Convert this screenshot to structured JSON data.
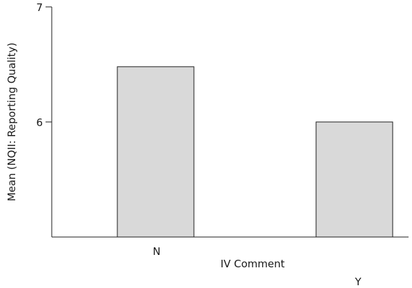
{
  "chart_data": {
    "type": "bar",
    "categories": [
      "N",
      "Y"
    ],
    "values": [
      6.48,
      6.0
    ],
    "ylim": [
      5,
      7
    ],
    "yticks": [
      6,
      7
    ],
    "xlabel": "IV Comment",
    "ylabel": "Mean (NQII: Reporting Quality)",
    "grid": false,
    "colors": {
      "bar_fill": "#d9d9d9",
      "bar_stroke": "#1a1a1a"
    }
  }
}
